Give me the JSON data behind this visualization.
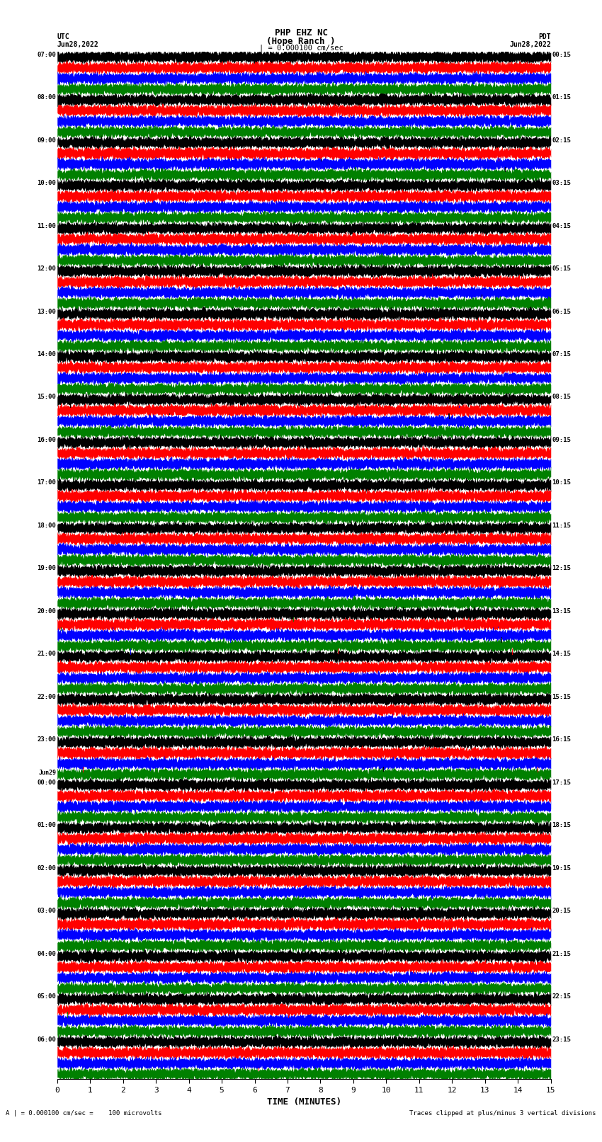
{
  "title_line1": "PHP EHZ NC",
  "title_line2": "(Hope Ranch )",
  "title_line3": "| = 0.000100 cm/sec",
  "left_label_line1": "UTC",
  "left_label_line2": "Jun28,2022",
  "right_label_line1": "PDT",
  "right_label_line2": "Jun28,2022",
  "bottom_label": "TIME (MINUTES)",
  "footer_left": "A | = 0.000100 cm/sec =    100 microvolts",
  "footer_right": "Traces clipped at plus/minus 3 vertical divisions",
  "utc_times": [
    "07:00",
    "08:00",
    "09:00",
    "10:00",
    "11:00",
    "12:00",
    "13:00",
    "14:00",
    "15:00",
    "16:00",
    "17:00",
    "18:00",
    "19:00",
    "20:00",
    "21:00",
    "22:00",
    "23:00",
    "Jun29\n00:00",
    "01:00",
    "02:00",
    "03:00",
    "04:00",
    "05:00",
    "06:00"
  ],
  "pdt_times": [
    "00:15",
    "01:15",
    "02:15",
    "03:15",
    "04:15",
    "05:15",
    "06:15",
    "07:15",
    "08:15",
    "09:15",
    "10:15",
    "11:15",
    "12:15",
    "13:15",
    "14:15",
    "15:15",
    "16:15",
    "17:15",
    "18:15",
    "19:15",
    "20:15",
    "21:15",
    "22:15",
    "23:15"
  ],
  "colors": [
    "black",
    "red",
    "blue",
    "green"
  ],
  "num_rows": 24,
  "traces_per_row": 4,
  "minutes": 15,
  "background_color": "white",
  "fig_width": 8.5,
  "fig_height": 16.13,
  "dpi": 100
}
